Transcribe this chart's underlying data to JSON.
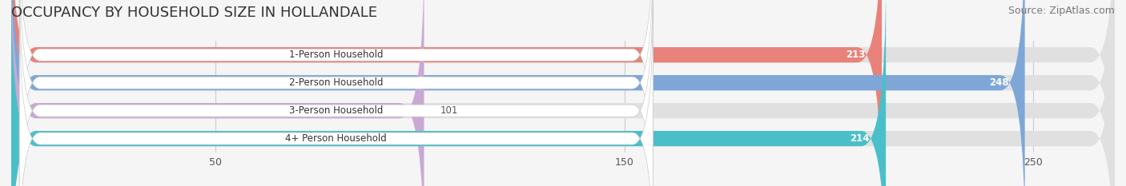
{
  "title": "OCCUPANCY BY HOUSEHOLD SIZE IN HOLLANDALE",
  "source": "Source: ZipAtlas.com",
  "categories": [
    "1-Person Household",
    "2-Person Household",
    "3-Person Household",
    "4+ Person Household"
  ],
  "values": [
    213,
    248,
    101,
    214
  ],
  "bar_colors": [
    "#E8827A",
    "#7EA7D8",
    "#C9A8D4",
    "#4BBFC9"
  ],
  "label_colors": [
    "#E8827A",
    "#7EA7D8",
    "#C9A8D4",
    "#4BBFC9"
  ],
  "value_label_in_bar": [
    true,
    true,
    false,
    true
  ],
  "xlim": [
    0,
    270
  ],
  "xticks": [
    50,
    150,
    250
  ],
  "background_color": "#f0f0f0",
  "bar_background": "#e8e8e8",
  "title_fontsize": 13,
  "source_fontsize": 9,
  "bar_height": 0.55,
  "figsize": [
    14.06,
    2.33
  ]
}
